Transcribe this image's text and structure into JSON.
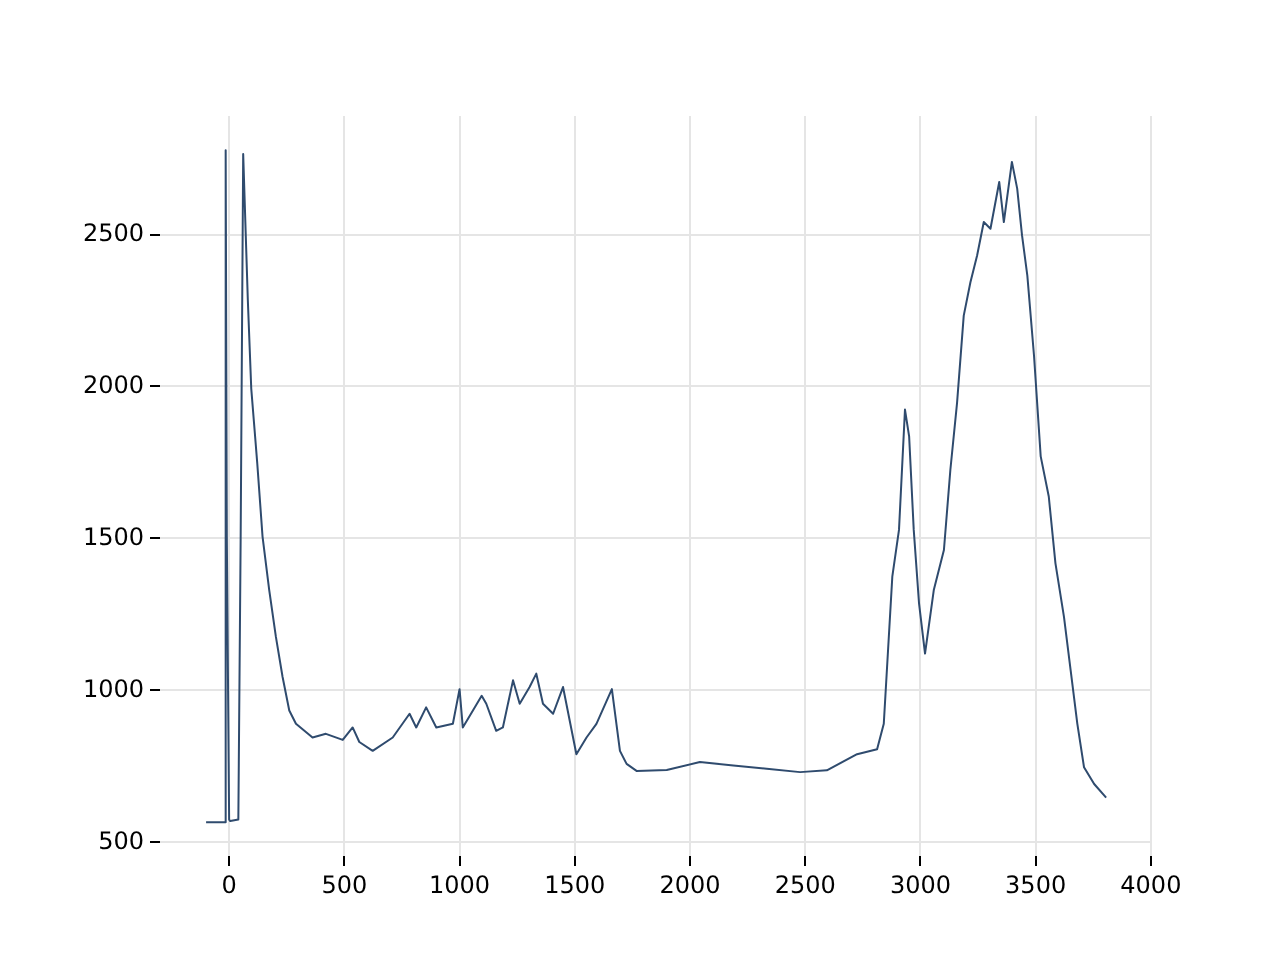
{
  "chart_data": {
    "type": "line",
    "xlim": [
      -300,
      4005
    ],
    "ylim": [
      455,
      2890
    ],
    "xticks": [
      0,
      500,
      1000,
      1500,
      2000,
      2500,
      3000,
      3500,
      4000
    ],
    "yticks": [
      500,
      1000,
      1500,
      2000,
      2500
    ],
    "grid": true,
    "legend": false,
    "marker": "none",
    "line_style": "solid",
    "series": [
      {
        "color": "#2f4b6e",
        "x": [
          -100,
          -20,
          -15,
          -10,
          0,
          5,
          40,
          50,
          61,
          81,
          96,
          122,
          145,
          174,
          203,
          232,
          261,
          290,
          362,
          420,
          493,
          536,
          565,
          623,
          710,
          783,
          812,
          855,
          899,
          971,
          1000,
          1014,
          1058,
          1096,
          1116,
          1159,
          1188,
          1232,
          1261,
          1304,
          1333,
          1362,
          1406,
          1449,
          1507,
          1551,
          1594,
          1661,
          1696,
          1725,
          1768,
          1899,
          2043,
          2188,
          2333,
          2478,
          2594,
          2725,
          2812,
          2841,
          2878,
          2907,
          2933,
          2951,
          2971,
          2994,
          3020,
          3058,
          3102,
          3130,
          3159,
          3188,
          3217,
          3246,
          3275,
          3304,
          3342,
          3362,
          3397,
          3420,
          3441,
          3464,
          3493,
          3522,
          3557,
          3586,
          3623,
          3652,
          3681,
          3710,
          3754,
          3806
        ],
        "values": [
          566,
          566,
          2777,
          1500,
          575,
          570,
          575,
          1500,
          2765,
          2287,
          1993,
          1748,
          1506,
          1330,
          1176,
          1044,
          934,
          890,
          845,
          857,
          837,
          878,
          830,
          801,
          845,
          923,
          878,
          944,
          878,
          890,
          1004,
          878,
          934,
          982,
          956,
          867,
          878,
          1033,
          956,
          1011,
          1055,
          956,
          923,
          1011,
          790,
          845,
          890,
          1004,
          801,
          758,
          735,
          738,
          764,
          753,
          742,
          731,
          737,
          790,
          806,
          890,
          1374,
          1528,
          1924,
          1836,
          1528,
          1286,
          1121,
          1330,
          1462,
          1726,
          1946,
          2233,
          2343,
          2431,
          2541,
          2519,
          2673,
          2541,
          2739,
          2651,
          2497,
          2365,
          2101,
          1770,
          1638,
          1418,
          1242,
          1066,
          890,
          747,
          692,
          647
        ]
      }
    ]
  }
}
